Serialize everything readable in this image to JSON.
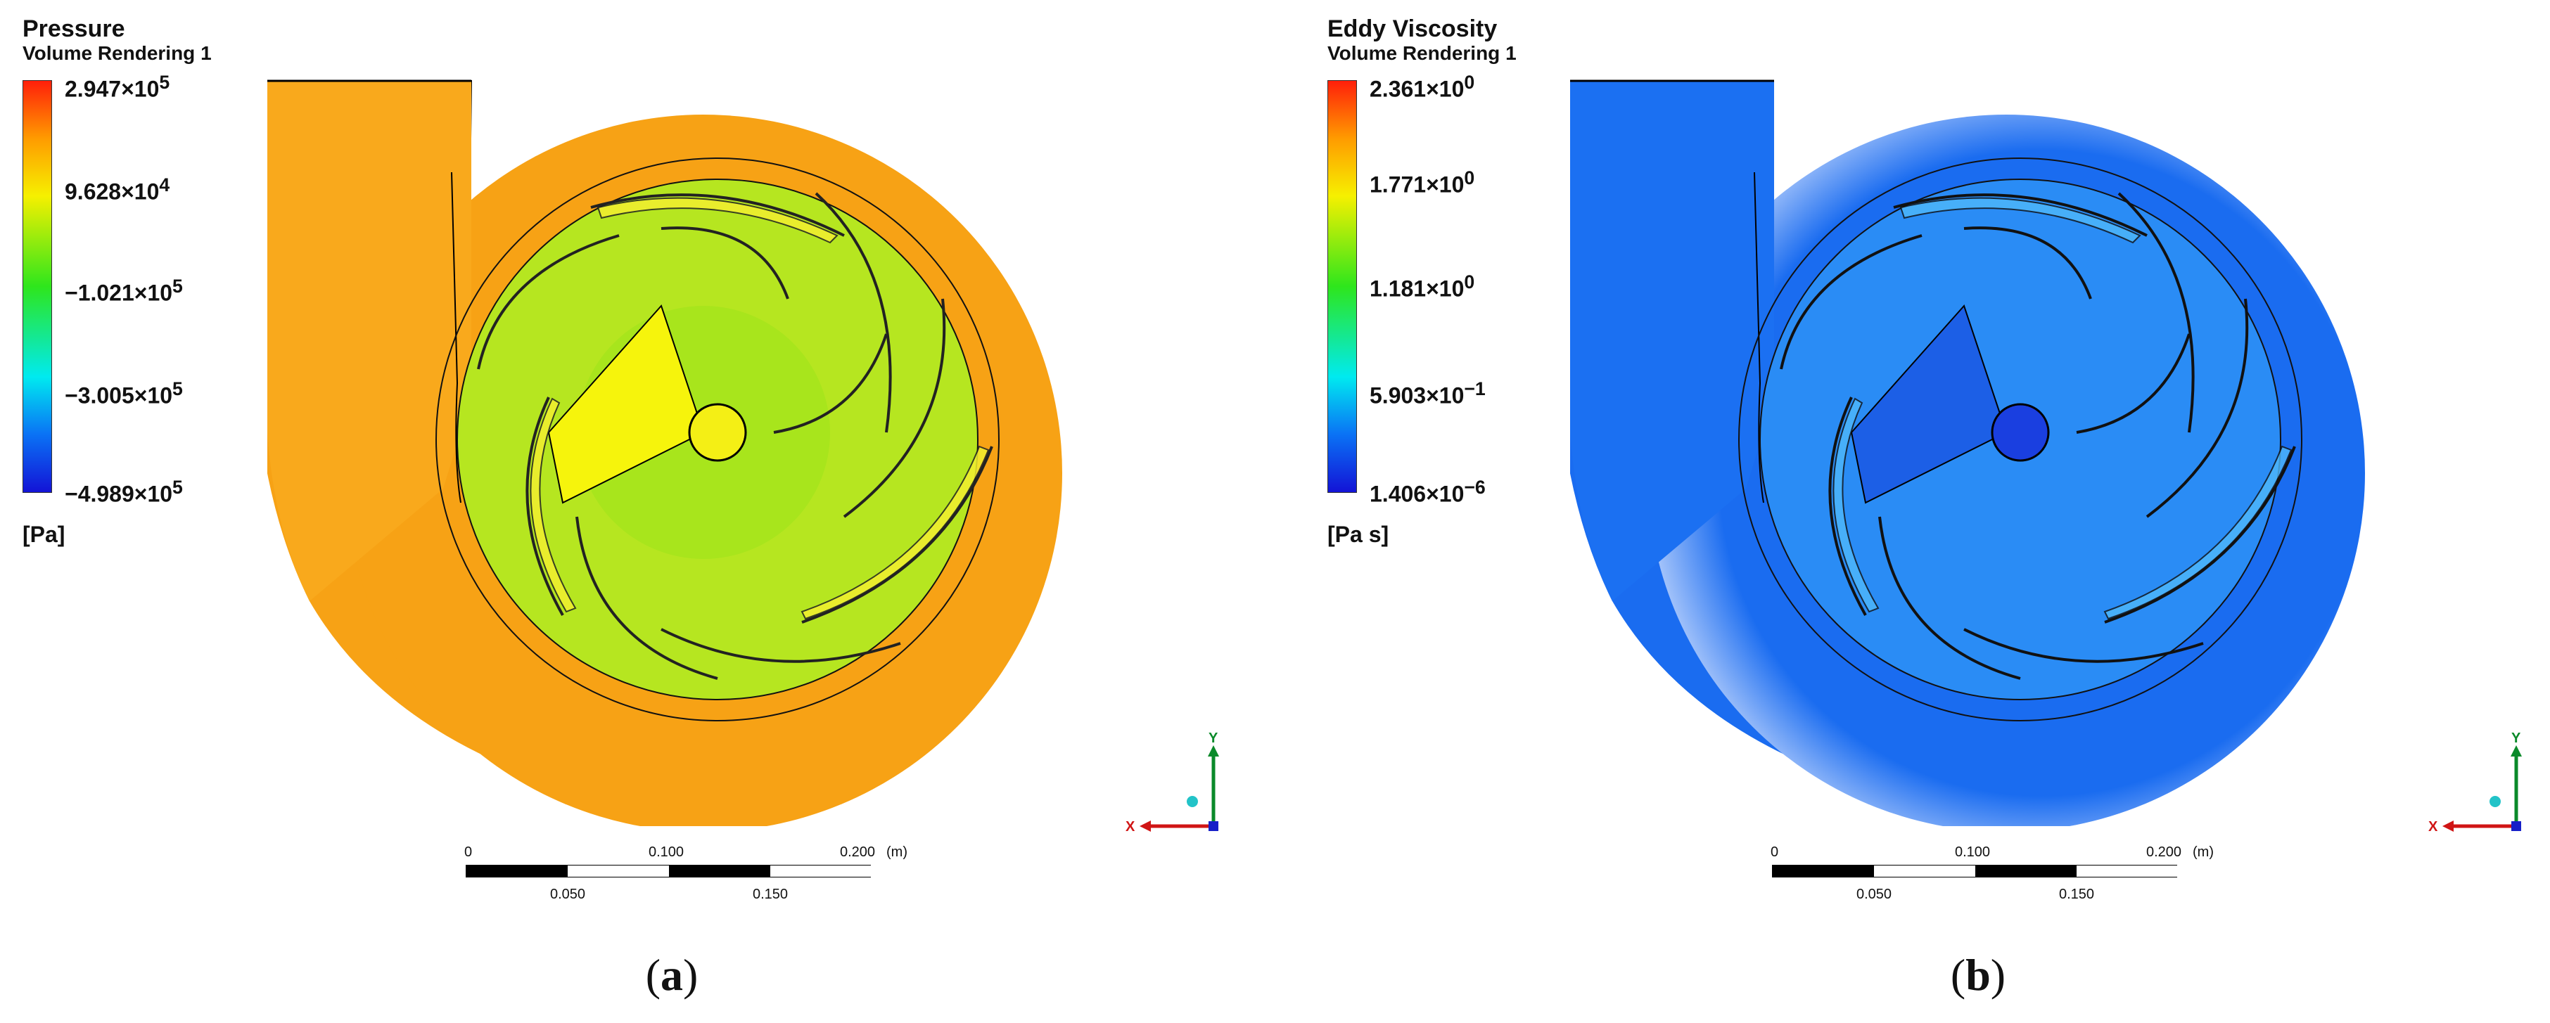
{
  "panel_a": {
    "legend_title": "Pressure",
    "legend_subtitle": "Volume Rendering 1",
    "ticks": [
      {
        "base": "2.947",
        "exp": "5"
      },
      {
        "base": "9.628",
        "exp": "4"
      },
      {
        "base": "−1.021",
        "exp": "5"
      },
      {
        "base": "−3.005",
        "exp": "5"
      },
      {
        "base": "−4.989",
        "exp": "5"
      }
    ],
    "unit": "[Pa]",
    "field_color": "#f8a416",
    "impeller_color": "#b6e620",
    "caption_letter": "a"
  },
  "panel_b": {
    "legend_title": "Eddy Viscosity",
    "legend_subtitle": "Volume Rendering 1",
    "ticks": [
      {
        "base": "2.361",
        "exp": "0"
      },
      {
        "base": "1.771",
        "exp": "0"
      },
      {
        "base": "1.181",
        "exp": "0"
      },
      {
        "base": "5.903",
        "exp": "−1"
      },
      {
        "base": "1.406",
        "exp": "−6"
      }
    ],
    "unit": "[Pa s]",
    "field_color": "#1a6cf0",
    "impeller_color": "#2a8cf5",
    "caption_letter": "b"
  },
  "scale": {
    "top_labels": [
      "0",
      "0.100",
      "0.200",
      "(m)"
    ],
    "bottom_labels": [
      "0.050",
      "0.150"
    ]
  },
  "axes": {
    "y_label": "Y",
    "x_label": "X"
  },
  "times": "×10"
}
